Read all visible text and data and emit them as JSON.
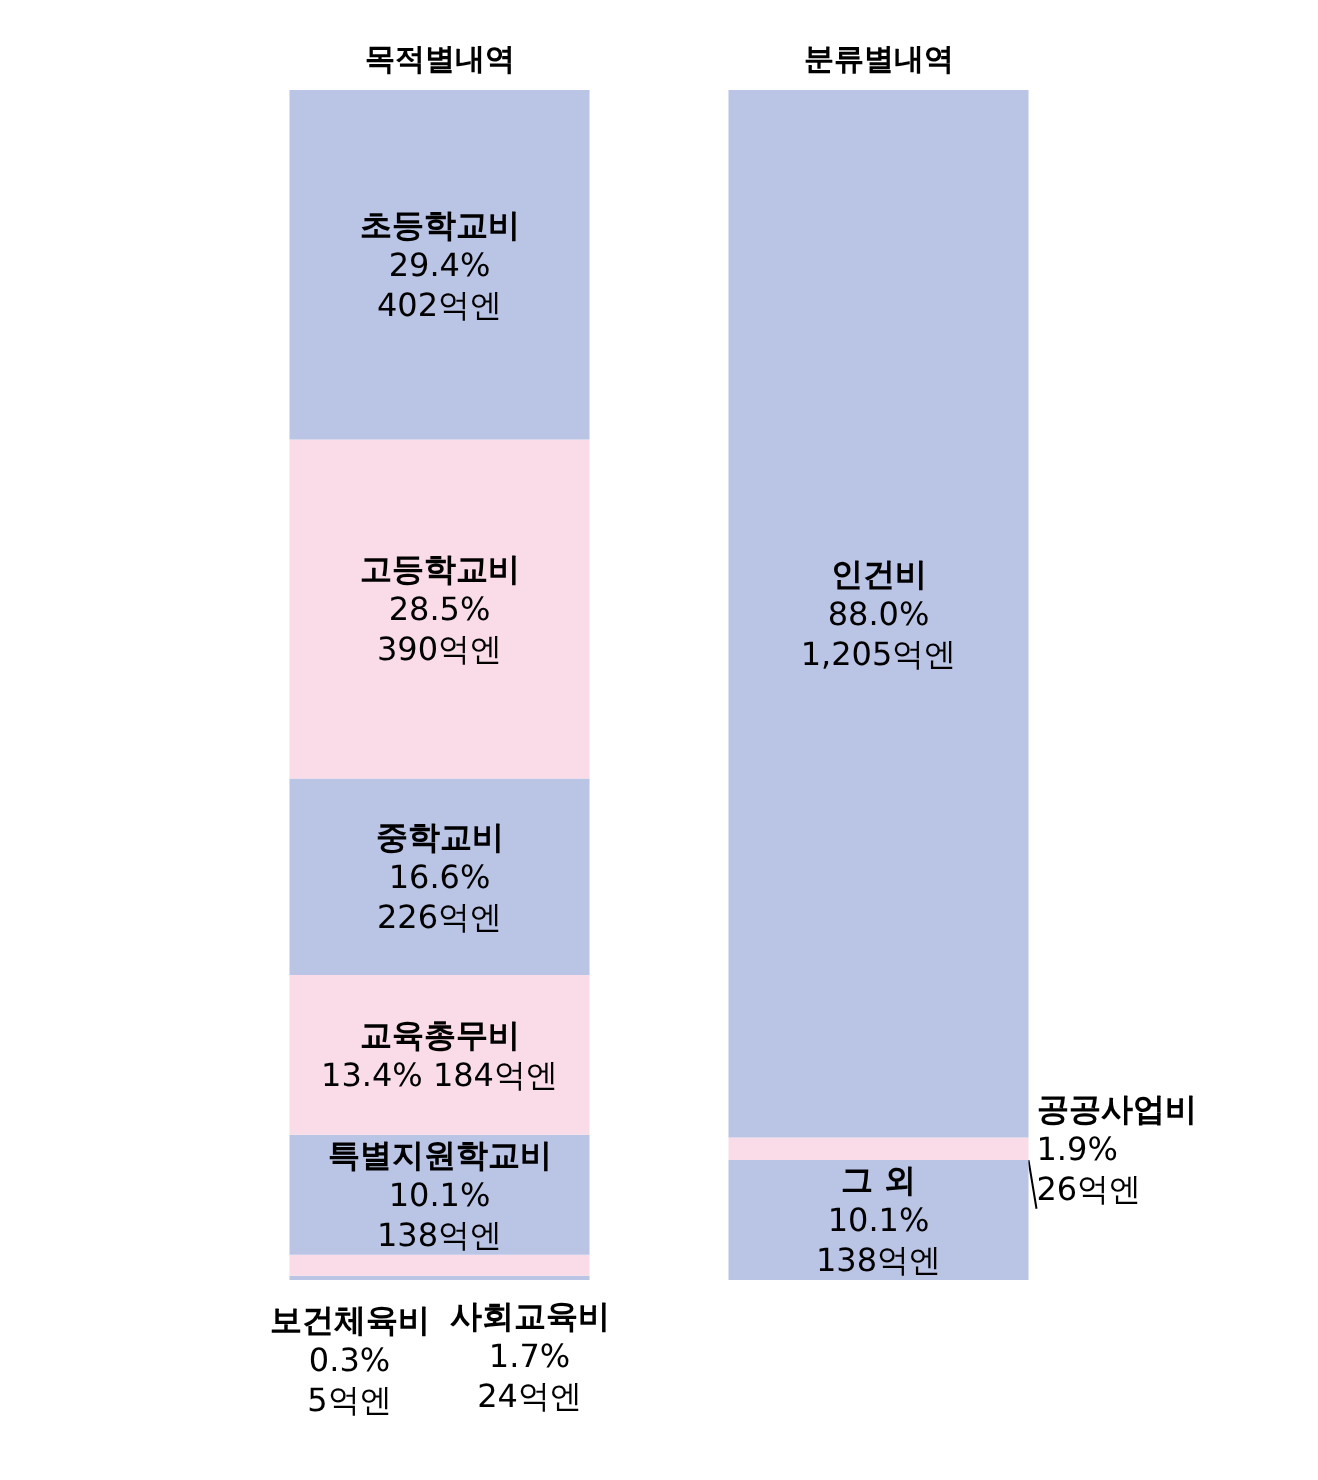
{
  "chart_data": {
    "type": "bar",
    "stacked": true,
    "categories": [
      "목적별내역",
      "분류별내역"
    ],
    "series": [
      {
        "name": "보건체육비",
        "color": "#bac4e4",
        "values": [
          5,
          null
        ],
        "value_labels": [
          "0.3%\n5억엔",
          null
        ]
      },
      {
        "name": "사회교육비",
        "color": "#f9dce7",
        "values": [
          24,
          null
        ],
        "value_labels": [
          "1.7%\n24억엔",
          null
        ]
      },
      {
        "name": "특별지원학교비",
        "color": "#bac4e4",
        "values": [
          138,
          null
        ],
        "value_labels": [
          "10.1%\n138억엔",
          null
        ]
      },
      {
        "name": "교육총무비",
        "color": "#f9dce7",
        "values": [
          184,
          null
        ],
        "value_labels": [
          "13.4% 184억엔",
          null
        ]
      },
      {
        "name": "중학교비",
        "color": "#bac4e4",
        "values": [
          226,
          null
        ],
        "value_labels": [
          "16.6%\n226억엔",
          null
        ]
      },
      {
        "name": "고등학교비",
        "color": "#f9dce7",
        "values": [
          390,
          null
        ],
        "value_labels": [
          "28.5%\n390억엔",
          null
        ]
      },
      {
        "name": "초등학교비",
        "color": "#bac4e4",
        "values": [
          402,
          null
        ],
        "value_labels": [
          "29.4%\n402억엔",
          null
        ]
      },
      {
        "name": "그 외",
        "color": "#bac4e4",
        "values": [
          null,
          138
        ],
        "value_labels": [
          null,
          "10.1%\n138억엔"
        ]
      },
      {
        "name": "공공사업비",
        "color": "#f9dce7",
        "values": [
          null,
          26
        ],
        "value_labels": [
          null,
          "1.9%\n26억엔"
        ]
      },
      {
        "name": "인건비",
        "color": "#bac4e4",
        "values": [
          null,
          1205
        ],
        "value_labels": [
          null,
          "88.0%\n1,205억엔"
        ]
      }
    ]
  }
}
